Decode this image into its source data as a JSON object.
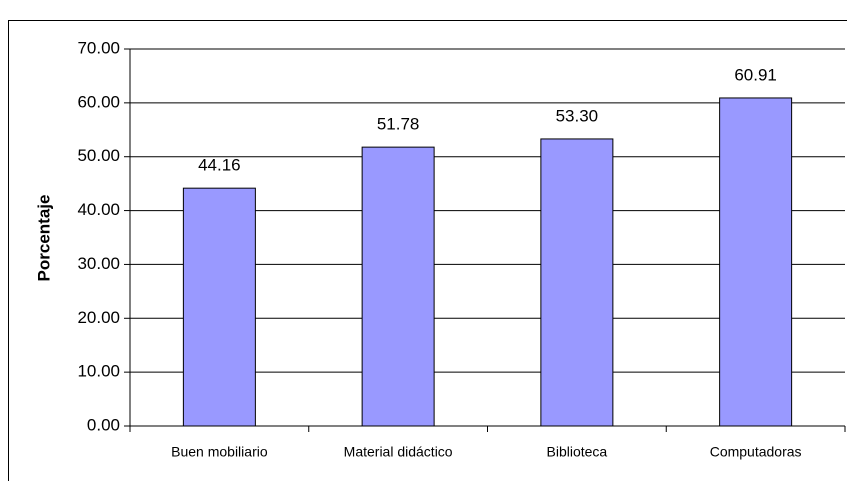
{
  "chart_data": {
    "type": "bar",
    "y_label": "Porcentaje",
    "categories": [
      "Buen mobiliario",
      "Material didáctico",
      "Biblioteca",
      "Computadoras"
    ],
    "values": [
      44.16,
      51.78,
      53.3,
      60.91
    ],
    "value_labels": [
      "44.16",
      "51.78",
      "53.30",
      "60.91"
    ],
    "color": "#9999ff",
    "ylim": [
      0,
      70
    ],
    "yticks": [
      {
        "value": 0,
        "label": "0.00"
      },
      {
        "value": 10,
        "label": "10.00"
      },
      {
        "value": 20,
        "label": "20.00"
      },
      {
        "value": 30,
        "label": "30.00"
      },
      {
        "value": 40,
        "label": "40.00"
      },
      {
        "value": 50,
        "label": "50.00"
      },
      {
        "value": 60,
        "label": "60.00"
      },
      {
        "value": 70,
        "label": "70.00"
      }
    ],
    "grid": true
  }
}
